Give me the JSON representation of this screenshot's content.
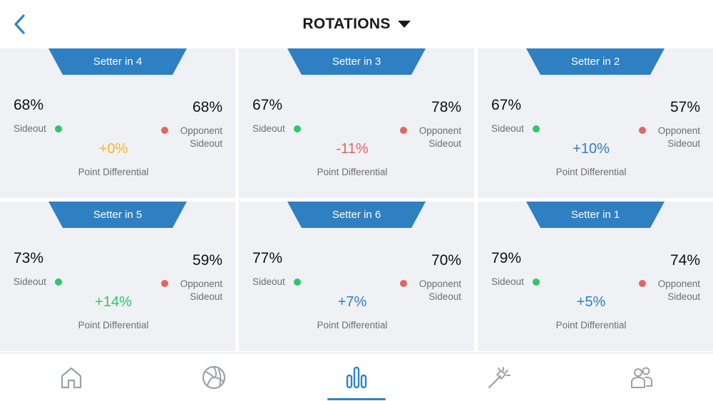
{
  "header": {
    "title": "ROTATIONS",
    "back_icon": "chevron-left-icon",
    "dropdown_icon": "caret-down-icon"
  },
  "colors": {
    "accent": "#2b86c5",
    "banner": "#2f7fc3",
    "positive": "#2f7fc3",
    "strong_positive": "#2ec76a",
    "neutral": "#f5b731",
    "negative": "#e26566",
    "sideout_dot": "#2ec76a",
    "opponent_dot": "#e26566",
    "card_bg": "#eff1f4"
  },
  "labels": {
    "sideout": "Sideout",
    "opponent_line1": "Opponent",
    "opponent_line2": "Sideout",
    "point_differential": "Point Differential"
  },
  "rotations": [
    {
      "title": "Setter in 4",
      "sideout": "68%",
      "opponent_sideout": "68%",
      "differential": "+0%",
      "diff_color": "#f5b731"
    },
    {
      "title": "Setter in 3",
      "sideout": "67%",
      "opponent_sideout": "78%",
      "differential": "-11%",
      "diff_color": "#e26566"
    },
    {
      "title": "Setter in 2",
      "sideout": "67%",
      "opponent_sideout": "57%",
      "differential": "+10%",
      "diff_color": "#2f7fc3"
    },
    {
      "title": "Setter in 5",
      "sideout": "73%",
      "opponent_sideout": "59%",
      "differential": "+14%",
      "diff_color": "#2ec76a"
    },
    {
      "title": "Setter in 6",
      "sideout": "77%",
      "opponent_sideout": "70%",
      "differential": "+7%",
      "diff_color": "#2f7fc3"
    },
    {
      "title": "Setter in 1",
      "sideout": "79%",
      "opponent_sideout": "74%",
      "differential": "+5%",
      "diff_color": "#2f7fc3"
    }
  ],
  "tabbar": {
    "tabs": [
      {
        "icon": "home-icon",
        "active": false
      },
      {
        "icon": "volleyball-icon",
        "active": false
      },
      {
        "icon": "bar-chart-icon",
        "active": true
      },
      {
        "icon": "magic-wand-icon",
        "active": false
      },
      {
        "icon": "team-icon",
        "active": false
      }
    ]
  }
}
